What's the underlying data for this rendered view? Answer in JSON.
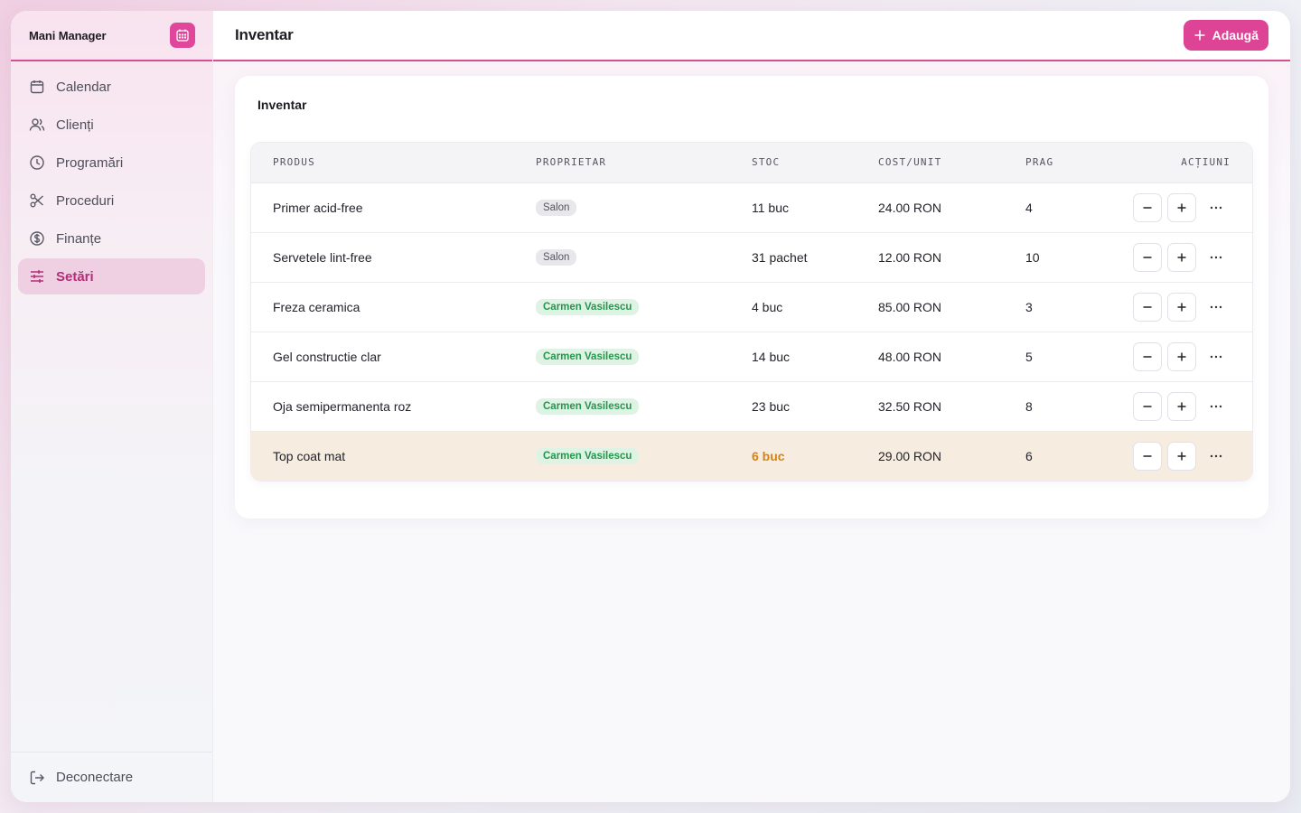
{
  "app": {
    "brand": "Mani Manager"
  },
  "sidebar": {
    "items": [
      {
        "label": "Calendar",
        "icon": "calendar-icon"
      },
      {
        "label": "Clienți",
        "icon": "users-icon"
      },
      {
        "label": "Programări",
        "icon": "clock-icon"
      },
      {
        "label": "Proceduri",
        "icon": "scissors-icon"
      },
      {
        "label": "Finanțe",
        "icon": "dollar-circle-icon"
      },
      {
        "label": "Setări",
        "icon": "sliders-icon",
        "active": true
      }
    ],
    "logout": "Deconectare"
  },
  "header": {
    "title": "Inventar",
    "add_label": "Adaugă"
  },
  "card": {
    "title": "Inventar"
  },
  "table": {
    "columns": [
      "PRODUS",
      "PROPRIETAR",
      "STOC",
      "COST/UNIT",
      "PRAG",
      "ACȚIUNI"
    ],
    "rows": [
      {
        "product": "Primer acid-free",
        "owner": "Salon",
        "stock": "11 buc",
        "cost": "24.00 RON",
        "threshold": "4"
      },
      {
        "product": "Servetele lint-free",
        "owner": "Salon",
        "stock": "31 pachet",
        "cost": "12.00 RON",
        "threshold": "10"
      },
      {
        "product": "Freza ceramica",
        "owner": "Carmen Vasilescu",
        "stock": "4 buc",
        "cost": "85.00 RON",
        "threshold": "3"
      },
      {
        "product": "Gel constructie clar",
        "owner": "Carmen Vasilescu",
        "stock": "14 buc",
        "cost": "48.00 RON",
        "threshold": "5"
      },
      {
        "product": "Oja semipermanenta roz",
        "owner": "Carmen Vasilescu",
        "stock": "23 buc",
        "cost": "32.50 RON",
        "threshold": "8"
      },
      {
        "product": "Top coat mat",
        "owner": "Carmen Vasilescu",
        "stock": "6 buc",
        "cost": "29.00 RON",
        "threshold": "6"
      }
    ]
  },
  "colors": {
    "accent": "#dd4496",
    "low_stock_row": "#f6ece0",
    "low_stock_text": "#d68316",
    "owner_badge": "#24964b"
  }
}
